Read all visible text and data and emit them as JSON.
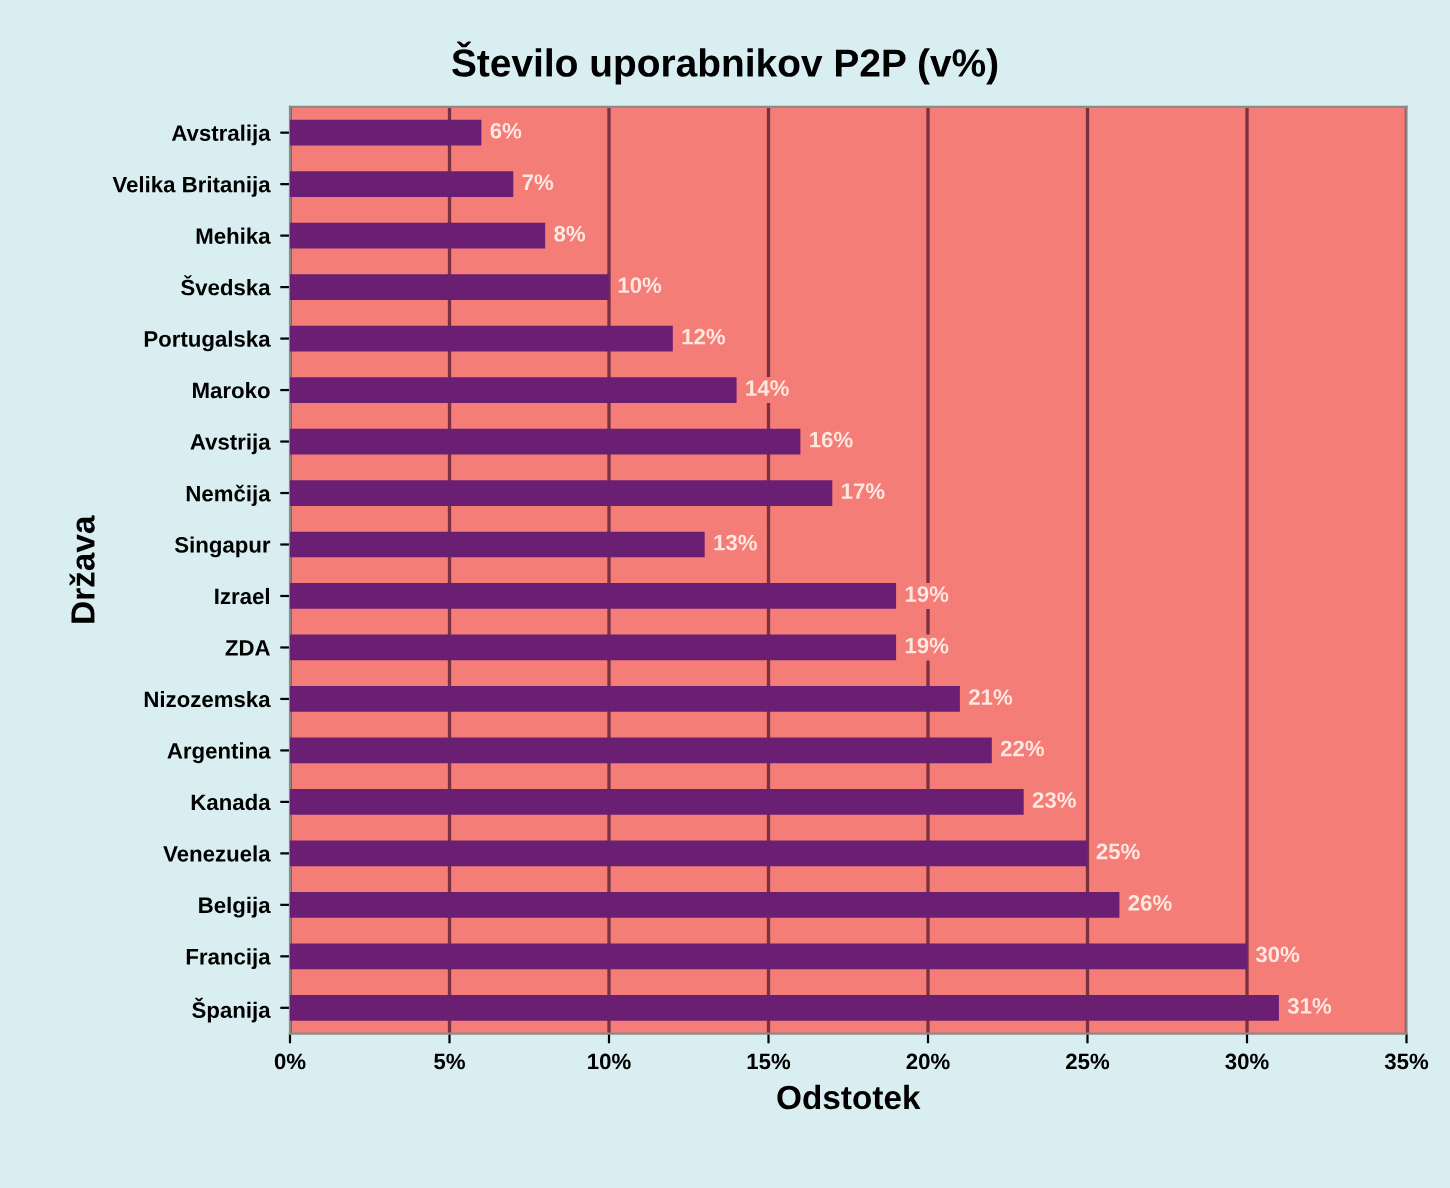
{
  "chart_data": {
    "type": "bar",
    "orientation": "horizontal",
    "title": "Število uporabnikov P2P (v%)",
    "xlabel": "Odstotek",
    "ylabel": "Država",
    "categories": [
      "Avstralija",
      "Velika Britanija",
      "Mehika",
      "Švedska",
      "Portugalska",
      "Maroko",
      "Avstrija",
      "Nemčija",
      "Singapur",
      "Izrael",
      "ZDA",
      "Nizozemska",
      "Argentina",
      "Kanada",
      "Venezuela",
      "Belgija",
      "Francija",
      "Španija"
    ],
    "values": [
      6,
      7,
      8,
      10,
      12,
      14,
      16,
      17,
      13,
      19,
      19,
      21,
      22,
      23,
      25,
      26,
      30,
      31
    ],
    "value_labels": [
      "6%",
      "7%",
      "8%",
      "10%",
      "12%",
      "14%",
      "16%",
      "17%",
      "13%",
      "19%",
      "19%",
      "21%",
      "22%",
      "23%",
      "25%",
      "26%",
      "30%",
      "31%"
    ],
    "color": "#6b1f72",
    "xlim": [
      0,
      35
    ],
    "xticks": [
      {
        "value": 0,
        "label": "0%"
      },
      {
        "value": 5,
        "label": "5%"
      },
      {
        "value": 10,
        "label": "10%"
      },
      {
        "value": 15,
        "label": "15%"
      },
      {
        "value": 20,
        "label": "20%"
      },
      {
        "value": 25,
        "label": "25%"
      },
      {
        "value": 30,
        "label": "30%"
      },
      {
        "value": 35,
        "label": "35%"
      }
    ],
    "grid": "x"
  }
}
